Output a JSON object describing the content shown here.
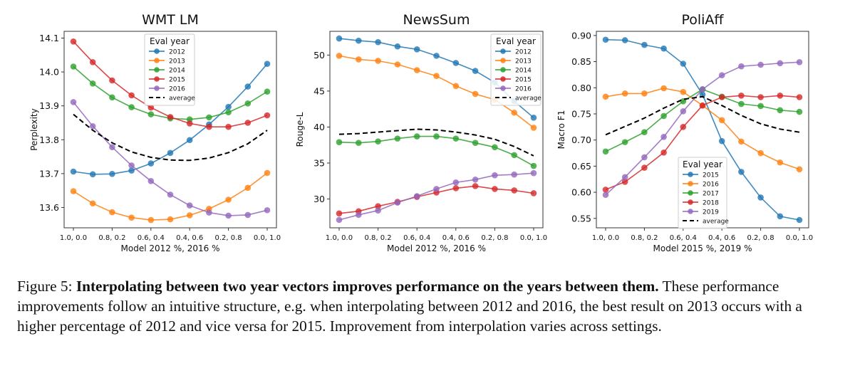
{
  "chart_data": [
    {
      "type": "line",
      "title": "WMT LM",
      "xlabel": "Model 2012 %, 2016 %",
      "ylabel": "Perplexity",
      "x": [
        1.0,
        0.9,
        0.8,
        0.7,
        0.6,
        0.5,
        0.4,
        0.3,
        0.2,
        0.1,
        0.0
      ],
      "xticks": [
        "1.0, 0.0",
        "0.8, 0.2",
        "0.6, 0.4",
        "0.4, 0.6",
        "0.2, 0.8",
        "0.0, 1.0"
      ],
      "yticks": [
        13.6,
        13.7,
        13.8,
        13.9,
        14.0,
        14.1
      ],
      "ylim": [
        13.54,
        14.12
      ],
      "legend_title": "Eval year",
      "legend_position": "upper-center",
      "series": [
        {
          "name": "2012",
          "color": "#1f77b4",
          "values": [
            13.706,
            13.698,
            13.699,
            13.709,
            13.73,
            13.761,
            13.799,
            13.845,
            13.897,
            13.957,
            14.024
          ]
        },
        {
          "name": "2013",
          "color": "#ff7f0e",
          "values": [
            13.648,
            13.612,
            13.586,
            13.57,
            13.563,
            13.565,
            13.577,
            13.596,
            13.623,
            13.658,
            13.702
          ]
        },
        {
          "name": "2014",
          "color": "#2ca02c",
          "values": [
            14.016,
            13.966,
            13.925,
            13.896,
            13.875,
            13.863,
            13.86,
            13.866,
            13.881,
            13.907,
            13.942
          ]
        },
        {
          "name": "2015",
          "color": "#d62728",
          "values": [
            14.09,
            14.029,
            13.975,
            13.931,
            13.895,
            13.867,
            13.848,
            13.838,
            13.838,
            13.85,
            13.872
          ]
        },
        {
          "name": "2016",
          "color": "#9467bd",
          "values": [
            13.911,
            13.84,
            13.778,
            13.724,
            13.678,
            13.638,
            13.606,
            13.585,
            13.576,
            13.578,
            13.592
          ]
        },
        {
          "name": "average",
          "color": "#000000",
          "dashed": true,
          "values": [
            13.875,
            13.828,
            13.791,
            13.764,
            13.748,
            13.74,
            13.739,
            13.746,
            13.762,
            13.788,
            13.828
          ]
        }
      ]
    },
    {
      "type": "line",
      "title": "NewsSum",
      "xlabel": "Model 2012 %, 2016 %",
      "ylabel": "Rouge-L",
      "x": [
        1.0,
        0.9,
        0.8,
        0.7,
        0.6,
        0.5,
        0.4,
        0.3,
        0.2,
        0.1,
        0.0
      ],
      "xticks": [
        "1.0, 0.0",
        "0.8, 0.2",
        "0.6, 0.4",
        "0.4, 0.6",
        "0.2, 0.8",
        "0.0, 1.0"
      ],
      "yticks": [
        30,
        35,
        40,
        45,
        50
      ],
      "ylim": [
        26.0,
        53.3
      ],
      "legend_title": "Eval year",
      "legend_position": "upper-right",
      "series": [
        {
          "name": "2012",
          "color": "#1f77b4",
          "values": [
            52.3,
            52.0,
            51.8,
            51.2,
            50.8,
            49.9,
            48.9,
            47.8,
            46.2,
            43.6,
            41.3
          ]
        },
        {
          "name": "2013",
          "color": "#ff7f0e",
          "values": [
            49.9,
            49.4,
            49.2,
            48.7,
            47.9,
            47.1,
            45.7,
            44.6,
            43.8,
            42.0,
            39.9
          ]
        },
        {
          "name": "2014",
          "color": "#2ca02c",
          "values": [
            37.9,
            37.8,
            38.0,
            38.4,
            38.7,
            38.7,
            38.4,
            37.8,
            37.2,
            36.1,
            34.6
          ]
        },
        {
          "name": "2015",
          "color": "#d62728",
          "values": [
            28.0,
            28.3,
            29.0,
            29.6,
            30.3,
            30.9,
            31.5,
            31.8,
            31.4,
            31.2,
            30.8
          ]
        },
        {
          "name": "2016",
          "color": "#9467bd",
          "values": [
            27.1,
            27.8,
            28.4,
            29.5,
            30.4,
            31.4,
            32.3,
            32.7,
            33.3,
            33.4,
            33.6
          ]
        },
        {
          "name": "average",
          "color": "#000000",
          "dashed": true,
          "values": [
            39.0,
            39.1,
            39.3,
            39.5,
            39.7,
            39.6,
            39.3,
            38.9,
            38.3,
            37.3,
            36.0
          ]
        }
      ]
    },
    {
      "type": "line",
      "title": "PoliAff",
      "xlabel": "Model 2015 %, 2019 %",
      "ylabel": "Macro F1",
      "x": [
        1.0,
        0.9,
        0.8,
        0.7,
        0.6,
        0.5,
        0.4,
        0.3,
        0.2,
        0.1,
        0.0
      ],
      "xticks": [
        "1.0, 0.0",
        "0.8, 0.2",
        "0.6, 0.4",
        "0.4, 0.6",
        "0.2, 0.8",
        "0.0, 1.0"
      ],
      "yticks": [
        0.55,
        0.6,
        0.65,
        0.7,
        0.75,
        0.8,
        0.85,
        0.9
      ],
      "ylim": [
        0.532,
        0.908
      ],
      "legend_title": "Eval year",
      "legend_position": "lower-center",
      "series": [
        {
          "name": "2015",
          "color": "#1f77b4",
          "values": [
            0.892,
            0.891,
            0.882,
            0.875,
            0.846,
            0.787,
            0.698,
            0.639,
            0.59,
            0.554,
            0.547
          ]
        },
        {
          "name": "2016",
          "color": "#ff7f0e",
          "values": [
            0.783,
            0.789,
            0.789,
            0.799,
            0.792,
            0.766,
            0.738,
            0.697,
            0.675,
            0.657,
            0.644
          ]
        },
        {
          "name": "2017",
          "color": "#2ca02c",
          "values": [
            0.678,
            0.696,
            0.715,
            0.746,
            0.774,
            0.797,
            0.783,
            0.769,
            0.765,
            0.757,
            0.754
          ]
        },
        {
          "name": "2018",
          "color": "#d62728",
          "values": [
            0.605,
            0.62,
            0.647,
            0.676,
            0.725,
            0.766,
            0.782,
            0.785,
            0.782,
            0.785,
            0.782
          ]
        },
        {
          "name": "2019",
          "color": "#9467bd",
          "values": [
            0.595,
            0.629,
            0.667,
            0.706,
            0.755,
            0.797,
            0.824,
            0.841,
            0.844,
            0.847,
            0.849
          ]
        },
        {
          "name": "average",
          "color": "#000000",
          "dashed": true,
          "values": [
            0.71,
            0.726,
            0.742,
            0.761,
            0.778,
            0.783,
            0.766,
            0.747,
            0.731,
            0.721,
            0.715
          ]
        }
      ]
    }
  ],
  "caption": {
    "label": "Figure 5:",
    "bold": "Interpolating between two year vectors improves performance on the years between them.",
    "text": "These performance improvements follow an intuitive structure, e.g. when interpolating between 2012 and 2016, the best result on 2013 occurs with a higher percentage of 2012 and vice versa for 2015. Improvement from interpolation varies across settings."
  }
}
